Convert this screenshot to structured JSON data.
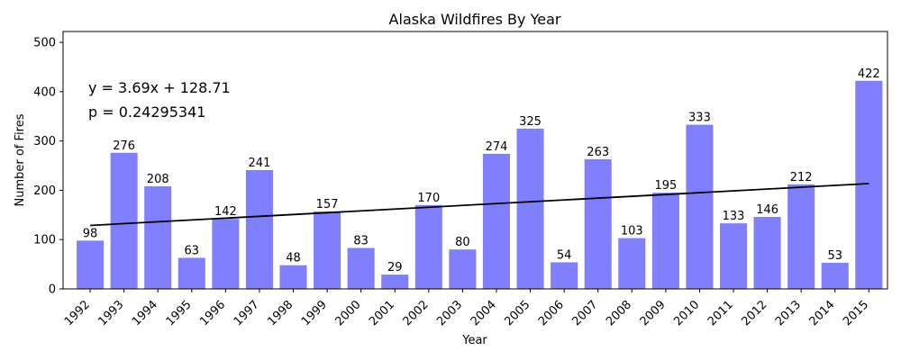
{
  "chart_data": {
    "type": "bar",
    "title": "Alaska Wildfires By Year",
    "xlabel": "Year",
    "ylabel": "Number of Fires",
    "categories": [
      "1992",
      "1993",
      "1994",
      "1995",
      "1996",
      "1997",
      "1998",
      "1999",
      "2000",
      "2001",
      "2002",
      "2003",
      "2004",
      "2005",
      "2006",
      "2007",
      "2008",
      "2009",
      "2010",
      "2011",
      "2012",
      "2013",
      "2014",
      "2015"
    ],
    "values": [
      98,
      276,
      208,
      63,
      142,
      241,
      48,
      157,
      83,
      29,
      170,
      80,
      274,
      325,
      54,
      263,
      103,
      195,
      333,
      133,
      146,
      212,
      53,
      422
    ],
    "data_labels": [
      "98",
      "276",
      "208",
      "63",
      "142",
      "241",
      "48",
      "157",
      "83",
      "29",
      "170",
      "80",
      "274",
      "325",
      "54",
      "263",
      "103",
      "195",
      "333",
      "133",
      "146",
      "212",
      "53",
      "422"
    ],
    "ylim": [
      0,
      522
    ],
    "yticks": [
      0,
      100,
      200,
      300,
      400,
      500
    ],
    "bar_color": "#8080ff",
    "trendline": {
      "color": "#000000",
      "slope": 3.69,
      "intercept": 128.71
    },
    "annotations": [
      "y = 3.69x + 128.71",
      "p = 0.24295341"
    ],
    "grid": false,
    "legend": "none"
  }
}
